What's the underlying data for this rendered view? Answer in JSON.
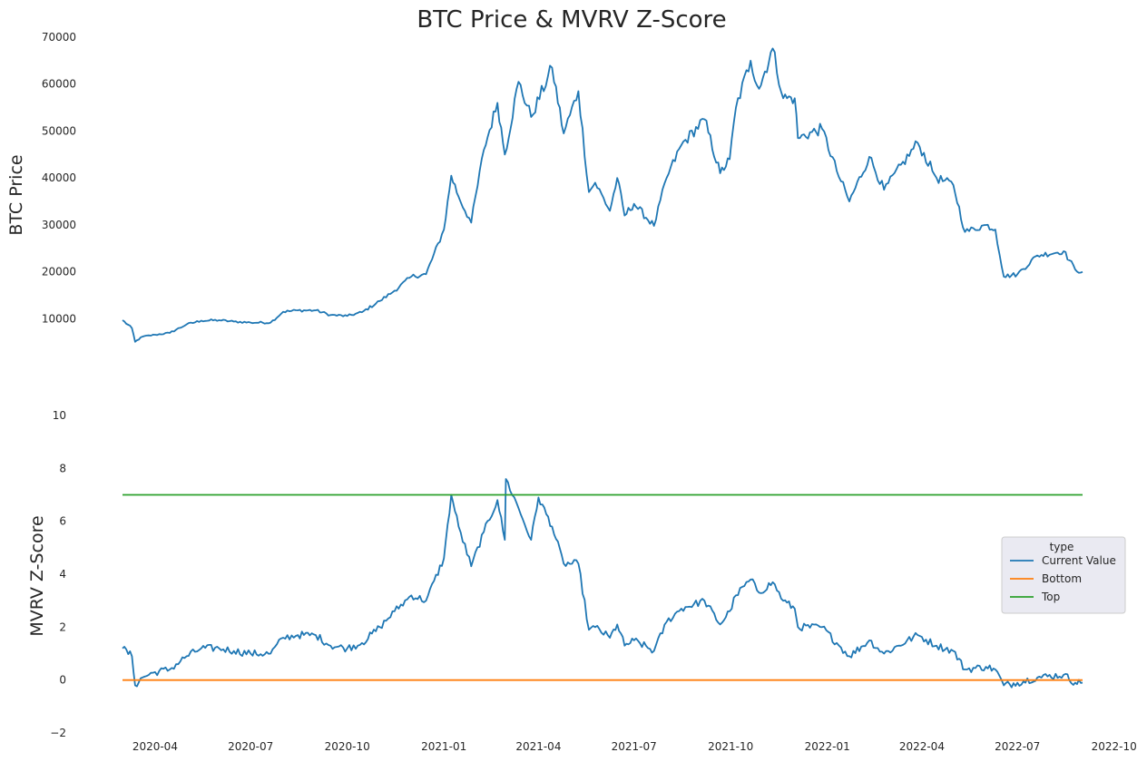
{
  "chart_data": {
    "type": "line",
    "title": "BTC Price & MVRV Z-Score",
    "x_ticks": [
      "2020-04",
      "2020-07",
      "2020-10",
      "2021-01",
      "2021-04",
      "2021-07",
      "2021-10",
      "2022-01",
      "2022-04",
      "2022-07",
      "2022-10"
    ],
    "x_range": [
      "2020-03-01",
      "2022-09-01"
    ],
    "price_panel": {
      "ylabel": "BTC  Price",
      "y_ticks": [
        10000,
        20000,
        30000,
        40000,
        50000,
        60000,
        70000
      ],
      "ylim": [
        1000,
        70000
      ],
      "grid": false,
      "series": [
        {
          "name": "",
          "color": "#1f77b4",
          "points": [
            [
              "2020-03-01",
              9700
            ],
            [
              "2020-03-10",
              8000
            ],
            [
              "2020-03-13",
              5100
            ],
            [
              "2020-03-20",
              6200
            ],
            [
              "2020-04-01",
              6600
            ],
            [
              "2020-04-15",
              7000
            ],
            [
              "2020-05-01",
              8800
            ],
            [
              "2020-05-15",
              9600
            ],
            [
              "2020-06-01",
              9700
            ],
            [
              "2020-06-15",
              9400
            ],
            [
              "2020-07-01",
              9200
            ],
            [
              "2020-07-20",
              9200
            ],
            [
              "2020-08-01",
              11500
            ],
            [
              "2020-08-15",
              11800
            ],
            [
              "2020-09-01",
              11800
            ],
            [
              "2020-09-15",
              10800
            ],
            [
              "2020-10-01",
              10600
            ],
            [
              "2020-10-15",
              11400
            ],
            [
              "2020-11-01",
              13800
            ],
            [
              "2020-11-15",
              16000
            ],
            [
              "2020-12-01",
              19000
            ],
            [
              "2020-12-15",
              19500
            ],
            [
              "2021-01-01",
              29000
            ],
            [
              "2021-01-08",
              40500
            ],
            [
              "2021-01-15",
              36000
            ],
            [
              "2021-01-27",
              30500
            ],
            [
              "2021-02-08",
              46000
            ],
            [
              "2021-02-21",
              56000
            ],
            [
              "2021-02-28",
              45000
            ],
            [
              "2021-03-13",
              60500
            ],
            [
              "2021-03-25",
              53000
            ],
            [
              "2021-04-14",
              63500
            ],
            [
              "2021-04-25",
              49500
            ],
            [
              "2021-05-09",
              58500
            ],
            [
              "2021-05-19",
              37000
            ],
            [
              "2021-05-25",
              39000
            ],
            [
              "2021-06-08",
              33000
            ],
            [
              "2021-06-15",
              40000
            ],
            [
              "2021-06-22",
              32000
            ],
            [
              "2021-07-01",
              34500
            ],
            [
              "2021-07-20",
              29800
            ],
            [
              "2021-08-01",
              40000
            ],
            [
              "2021-08-15",
              47000
            ],
            [
              "2021-09-06",
              52500
            ],
            [
              "2021-09-21",
              41000
            ],
            [
              "2021-09-30",
              44000
            ],
            [
              "2021-10-06",
              55000
            ],
            [
              "2021-10-20",
              65000
            ],
            [
              "2021-10-28",
              59000
            ],
            [
              "2021-11-10",
              67600
            ],
            [
              "2021-11-20",
              57000
            ],
            [
              "2021-12-01",
              57000
            ],
            [
              "2021-12-04",
              48500
            ],
            [
              "2021-12-27",
              50500
            ],
            [
              "2022-01-10",
              41500
            ],
            [
              "2022-01-22",
              35000
            ],
            [
              "2022-02-10",
              44500
            ],
            [
              "2022-02-24",
              37500
            ],
            [
              "2022-03-28",
              47500
            ],
            [
              "2022-04-15",
              40000
            ],
            [
              "2022-05-01",
              38500
            ],
            [
              "2022-05-12",
              28500
            ],
            [
              "2022-06-01",
              30000
            ],
            [
              "2022-06-10",
              29000
            ],
            [
              "2022-06-18",
              19000
            ],
            [
              "2022-07-01",
              19500
            ],
            [
              "2022-07-20",
              23500
            ],
            [
              "2022-08-14",
              24400
            ],
            [
              "2022-08-25",
              20500
            ],
            [
              "2022-09-01",
              20000
            ]
          ]
        }
      ]
    },
    "mvrv_panel": {
      "ylabel": "MVRV Z-Score",
      "y_ticks": [
        -2,
        0,
        2,
        4,
        6,
        8,
        10
      ],
      "ylim": [
        -2,
        10
      ],
      "grid": false,
      "legend": {
        "title": "type",
        "position": "right"
      },
      "series": [
        {
          "name": "Current Value",
          "color": "#1f77b4",
          "points": [
            [
              "2020-03-01",
              1.2
            ],
            [
              "2020-03-10",
              0.9
            ],
            [
              "2020-03-13",
              -0.2
            ],
            [
              "2020-03-20",
              0.1
            ],
            [
              "2020-04-01",
              0.3
            ],
            [
              "2020-04-15",
              0.4
            ],
            [
              "2020-05-01",
              0.9
            ],
            [
              "2020-05-15",
              1.2
            ],
            [
              "2020-06-01",
              1.2
            ],
            [
              "2020-06-15",
              1.1
            ],
            [
              "2020-07-01",
              1.0
            ],
            [
              "2020-07-20",
              1.0
            ],
            [
              "2020-08-01",
              1.6
            ],
            [
              "2020-08-15",
              1.7
            ],
            [
              "2020-09-01",
              1.7
            ],
            [
              "2020-09-15",
              1.3
            ],
            [
              "2020-10-01",
              1.2
            ],
            [
              "2020-10-15",
              1.4
            ],
            [
              "2020-11-01",
              2.0
            ],
            [
              "2020-11-15",
              2.6
            ],
            [
              "2020-12-01",
              3.2
            ],
            [
              "2020-12-15",
              3.0
            ],
            [
              "2021-01-01",
              4.6
            ],
            [
              "2021-01-08",
              7.0
            ],
            [
              "2021-01-15",
              5.8
            ],
            [
              "2021-01-27",
              4.3
            ],
            [
              "2021-02-08",
              5.6
            ],
            [
              "2021-02-21",
              6.8
            ],
            [
              "2021-02-28",
              5.3
            ],
            [
              "2021-03-01",
              7.6
            ],
            [
              "2021-03-13",
              6.5
            ],
            [
              "2021-03-25",
              5.3
            ],
            [
              "2021-04-01",
              6.9
            ],
            [
              "2021-04-14",
              5.8
            ],
            [
              "2021-04-25",
              4.4
            ],
            [
              "2021-05-09",
              4.4
            ],
            [
              "2021-05-19",
              1.9
            ],
            [
              "2021-05-25",
              2.0
            ],
            [
              "2021-06-08",
              1.6
            ],
            [
              "2021-06-15",
              2.1
            ],
            [
              "2021-06-22",
              1.3
            ],
            [
              "2021-07-01",
              1.5
            ],
            [
              "2021-07-20",
              1.1
            ],
            [
              "2021-08-01",
              2.2
            ],
            [
              "2021-08-15",
              2.7
            ],
            [
              "2021-09-06",
              3.0
            ],
            [
              "2021-09-21",
              2.1
            ],
            [
              "2021-09-30",
              2.6
            ],
            [
              "2021-10-06",
              3.2
            ],
            [
              "2021-10-20",
              3.8
            ],
            [
              "2021-10-28",
              3.3
            ],
            [
              "2021-11-10",
              3.7
            ],
            [
              "2021-11-20",
              3.0
            ],
            [
              "2021-12-01",
              2.7
            ],
            [
              "2021-12-04",
              2.0
            ],
            [
              "2021-12-27",
              2.0
            ],
            [
              "2022-01-10",
              1.4
            ],
            [
              "2022-01-22",
              0.9
            ],
            [
              "2022-02-10",
              1.5
            ],
            [
              "2022-02-24",
              1.0
            ],
            [
              "2022-03-28",
              1.7
            ],
            [
              "2022-04-15",
              1.3
            ],
            [
              "2022-05-01",
              1.1
            ],
            [
              "2022-05-12",
              0.4
            ],
            [
              "2022-06-01",
              0.5
            ],
            [
              "2022-06-10",
              0.4
            ],
            [
              "2022-06-18",
              -0.2
            ],
            [
              "2022-07-01",
              -0.1
            ],
            [
              "2022-07-20",
              0.1
            ],
            [
              "2022-08-14",
              0.2
            ],
            [
              "2022-08-25",
              -0.1
            ],
            [
              "2022-09-01",
              -0.1
            ]
          ]
        },
        {
          "name": "Bottom",
          "color": "#ff7f0e",
          "points": [
            [
              "2020-03-01",
              0
            ],
            [
              "2022-09-01",
              0
            ]
          ]
        },
        {
          "name": "Top",
          "color": "#2ca02c",
          "points": [
            [
              "2020-03-01",
              7
            ],
            [
              "2022-09-01",
              7
            ]
          ]
        }
      ]
    }
  }
}
